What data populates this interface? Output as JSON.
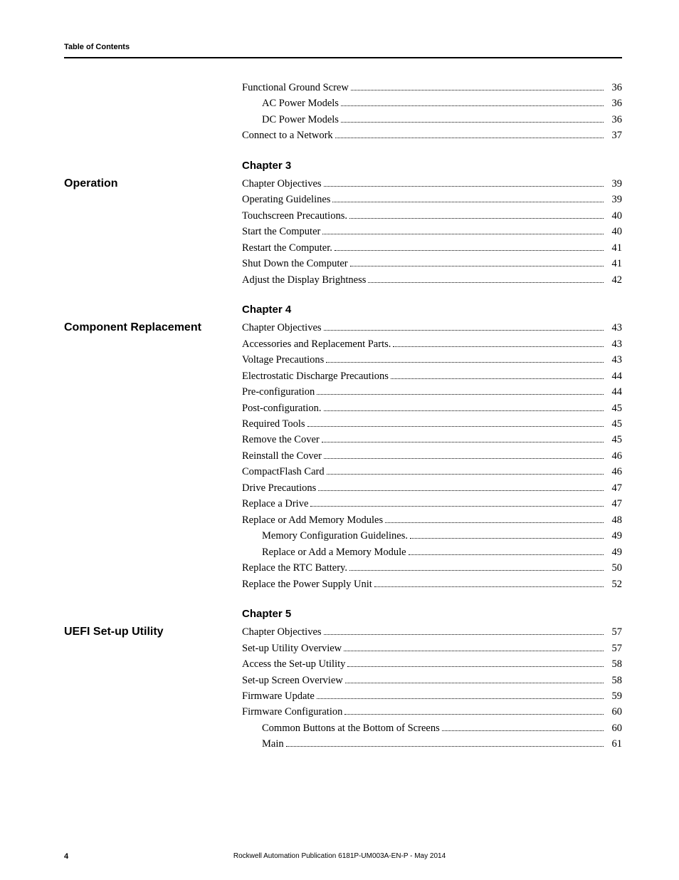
{
  "header": {
    "label": "Table of Contents"
  },
  "continued": [
    {
      "title": "Functional Ground Screw",
      "page": "36",
      "indent": 0
    },
    {
      "title": "AC Power Models",
      "page": "36",
      "indent": 1
    },
    {
      "title": "DC Power Models",
      "page": "36",
      "indent": 1
    },
    {
      "title": "Connect to a Network",
      "page": "37",
      "indent": 0
    }
  ],
  "sections": [
    {
      "chapter": "Chapter 3",
      "heading": "Operation",
      "entries": [
        {
          "title": "Chapter Objectives",
          "page": "39",
          "indent": 0
        },
        {
          "title": "Operating Guidelines",
          "page": "39",
          "indent": 0
        },
        {
          "title": "Touchscreen Precautions.",
          "page": "40",
          "indent": 0
        },
        {
          "title": "Start the Computer",
          "page": "40",
          "indent": 0
        },
        {
          "title": "Restart the Computer.",
          "page": "41",
          "indent": 0
        },
        {
          "title": "Shut Down the Computer",
          "page": "41",
          "indent": 0
        },
        {
          "title": "Adjust the Display Brightness",
          "page": "42",
          "indent": 0
        }
      ]
    },
    {
      "chapter": "Chapter 4",
      "heading": "Component Replacement",
      "entries": [
        {
          "title": "Chapter Objectives",
          "page": "43",
          "indent": 0
        },
        {
          "title": "Accessories and Replacement Parts.",
          "page": "43",
          "indent": 0
        },
        {
          "title": "Voltage Precautions",
          "page": "43",
          "indent": 0
        },
        {
          "title": "Electrostatic Discharge Precautions",
          "page": "44",
          "indent": 0
        },
        {
          "title": "Pre-configuration",
          "page": "44",
          "indent": 0
        },
        {
          "title": "Post-configuration.",
          "page": "45",
          "indent": 0
        },
        {
          "title": "Required Tools",
          "page": "45",
          "indent": 0
        },
        {
          "title": "Remove the Cover",
          "page": "45",
          "indent": 0
        },
        {
          "title": "Reinstall the Cover",
          "page": "46",
          "indent": 0
        },
        {
          "title": "CompactFlash Card",
          "page": "46",
          "indent": 0
        },
        {
          "title": "Drive Precautions",
          "page": "47",
          "indent": 0
        },
        {
          "title": "Replace a Drive",
          "page": "47",
          "indent": 0
        },
        {
          "title": "Replace or Add Memory Modules",
          "page": "48",
          "indent": 0
        },
        {
          "title": "Memory Configuration Guidelines.",
          "page": "49",
          "indent": 1
        },
        {
          "title": "Replace or Add a Memory Module",
          "page": "49",
          "indent": 1
        },
        {
          "title": "Replace the RTC Battery.",
          "page": "50",
          "indent": 0
        },
        {
          "title": "Replace the Power Supply Unit",
          "page": "52",
          "indent": 0
        }
      ]
    },
    {
      "chapter": "Chapter 5",
      "heading": "UEFI Set-up Utility",
      "entries": [
        {
          "title": "Chapter Objectives",
          "page": "57",
          "indent": 0
        },
        {
          "title": "Set-up Utility Overview",
          "page": "57",
          "indent": 0
        },
        {
          "title": "Access the Set-up Utility",
          "page": "58",
          "indent": 0
        },
        {
          "title": "Set-up Screen Overview",
          "page": "58",
          "indent": 0
        },
        {
          "title": "Firmware Update",
          "page": "59",
          "indent": 0
        },
        {
          "title": "Firmware Configuration",
          "page": "60",
          "indent": 0
        },
        {
          "title": "Common Buttons at the Bottom of Screens",
          "page": "60",
          "indent": 1
        },
        {
          "title": "Main",
          "page": "61",
          "indent": 1
        }
      ]
    }
  ],
  "footer": {
    "pagenum": "4",
    "publication": "Rockwell Automation Publication 6181P-UM003A-EN-P - May 2014"
  }
}
